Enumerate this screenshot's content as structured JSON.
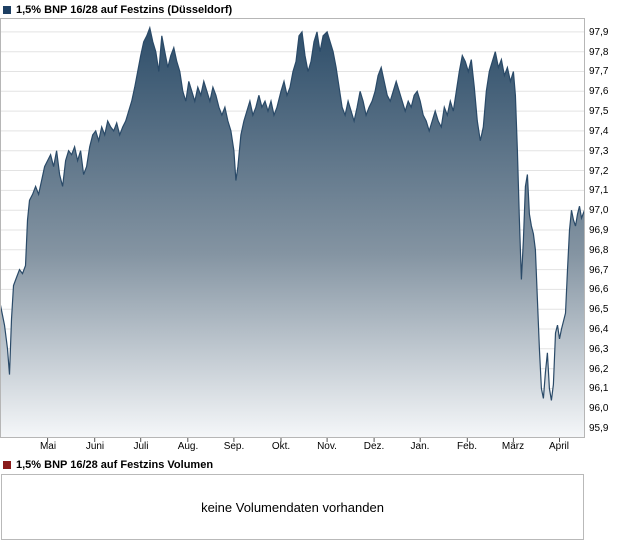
{
  "price_legend": {
    "label": "1,5% BNP 16/28 auf Festzins (Düsseldorf)",
    "color": "#1e3f63"
  },
  "volume_legend": {
    "label": "1,5% BNP 16/28 auf Festzins Volumen",
    "color": "#8a1a1a"
  },
  "volume_panel": {
    "message": "keine Volumendaten vorhanden"
  },
  "chart_data": {
    "type": "area",
    "title": "1,5% BNP 16/28 auf Festzins (Düsseldorf)",
    "xlabel": "",
    "ylabel": "",
    "x_axis_note": "one year, mid-April through April",
    "xlim": [
      0,
      583
    ],
    "ylim": [
      95.85,
      97.97
    ],
    "grid": "horizontal",
    "legend_position": "top-left",
    "line_color": "#2a4a68",
    "fill_top": "#2e4e6a",
    "fill_mid": "#8494a2",
    "fill_bottom": "#f5f7f9",
    "yticks": [
      {
        "value": 97.9,
        "label": "97,9"
      },
      {
        "value": 97.8,
        "label": "97,8"
      },
      {
        "value": 97.7,
        "label": "97,7"
      },
      {
        "value": 97.6,
        "label": "97,6"
      },
      {
        "value": 97.5,
        "label": "97,5"
      },
      {
        "value": 97.4,
        "label": "97,4"
      },
      {
        "value": 97.3,
        "label": "97,3"
      },
      {
        "value": 97.2,
        "label": "97,2"
      },
      {
        "value": 97.1,
        "label": "97,1"
      },
      {
        "value": 97.0,
        "label": "97,0"
      },
      {
        "value": 96.9,
        "label": "96,9"
      },
      {
        "value": 96.8,
        "label": "96,8"
      },
      {
        "value": 96.7,
        "label": "96,7"
      },
      {
        "value": 96.6,
        "label": "96,6"
      },
      {
        "value": 96.5,
        "label": "96,5"
      },
      {
        "value": 96.4,
        "label": "96,4"
      },
      {
        "value": 96.3,
        "label": "96,3"
      },
      {
        "value": 96.2,
        "label": "96,2"
      },
      {
        "value": 96.1,
        "label": "96,1"
      },
      {
        "value": 96.0,
        "label": "96,0"
      },
      {
        "value": 95.9,
        "label": "95,9"
      }
    ],
    "xticks": [
      {
        "label": "Mai",
        "x": 47
      },
      {
        "label": "Juni",
        "x": 94
      },
      {
        "label": "Juli",
        "x": 140
      },
      {
        "label": "Aug.",
        "x": 187
      },
      {
        "label": "Sep.",
        "x": 233
      },
      {
        "label": "Okt.",
        "x": 280
      },
      {
        "label": "Nov.",
        "x": 326
      },
      {
        "label": "Dez.",
        "x": 373
      },
      {
        "label": "Jan.",
        "x": 419
      },
      {
        "label": "Feb.",
        "x": 466
      },
      {
        "label": "März",
        "x": 512
      },
      {
        "label": "April",
        "x": 558
      }
    ],
    "series": [
      {
        "name": "1,5% BNP 16/28 auf Festzins (Düsseldorf)",
        "points": [
          [
            0,
            96.52
          ],
          [
            4,
            96.42
          ],
          [
            7,
            96.3
          ],
          [
            9,
            96.17
          ],
          [
            11,
            96.45
          ],
          [
            13,
            96.62
          ],
          [
            16,
            96.66
          ],
          [
            19,
            96.7
          ],
          [
            22,
            96.68
          ],
          [
            25,
            96.72
          ],
          [
            27,
            96.95
          ],
          [
            29,
            97.05
          ],
          [
            32,
            97.08
          ],
          [
            35,
            97.12
          ],
          [
            38,
            97.08
          ],
          [
            41,
            97.15
          ],
          [
            44,
            97.22
          ],
          [
            47,
            97.25
          ],
          [
            50,
            97.28
          ],
          [
            53,
            97.22
          ],
          [
            56,
            97.3
          ],
          [
            59,
            97.18
          ],
          [
            62,
            97.12
          ],
          [
            65,
            97.25
          ],
          [
            68,
            97.3
          ],
          [
            71,
            97.28
          ],
          [
            74,
            97.32
          ],
          [
            77,
            97.25
          ],
          [
            80,
            97.3
          ],
          [
            83,
            97.18
          ],
          [
            86,
            97.22
          ],
          [
            89,
            97.32
          ],
          [
            92,
            97.38
          ],
          [
            95,
            97.4
          ],
          [
            98,
            97.35
          ],
          [
            101,
            97.42
          ],
          [
            104,
            97.38
          ],
          [
            107,
            97.45
          ],
          [
            110,
            97.42
          ],
          [
            113,
            97.4
          ],
          [
            116,
            97.44
          ],
          [
            119,
            97.38
          ],
          [
            122,
            97.42
          ],
          [
            125,
            97.45
          ],
          [
            128,
            97.5
          ],
          [
            131,
            97.55
          ],
          [
            134,
            97.62
          ],
          [
            137,
            97.7
          ],
          [
            140,
            97.78
          ],
          [
            143,
            97.85
          ],
          [
            146,
            97.88
          ],
          [
            149,
            97.92
          ],
          [
            152,
            97.85
          ],
          [
            155,
            97.8
          ],
          [
            158,
            97.7
          ],
          [
            161,
            97.88
          ],
          [
            164,
            97.8
          ],
          [
            167,
            97.72
          ],
          [
            170,
            97.78
          ],
          [
            173,
            97.82
          ],
          [
            176,
            97.75
          ],
          [
            179,
            97.7
          ],
          [
            182,
            97.6
          ],
          [
            185,
            97.55
          ],
          [
            188,
            97.65
          ],
          [
            191,
            97.6
          ],
          [
            194,
            97.55
          ],
          [
            197,
            97.62
          ],
          [
            200,
            97.58
          ],
          [
            203,
            97.65
          ],
          [
            206,
            97.6
          ],
          [
            209,
            97.55
          ],
          [
            212,
            97.62
          ],
          [
            215,
            97.58
          ],
          [
            218,
            97.52
          ],
          [
            221,
            97.48
          ],
          [
            224,
            97.52
          ],
          [
            227,
            97.45
          ],
          [
            230,
            97.4
          ],
          [
            233,
            97.3
          ],
          [
            235,
            97.15
          ],
          [
            237,
            97.22
          ],
          [
            240,
            97.38
          ],
          [
            243,
            97.45
          ],
          [
            246,
            97.5
          ],
          [
            249,
            97.55
          ],
          [
            252,
            97.48
          ],
          [
            255,
            97.52
          ],
          [
            258,
            97.58
          ],
          [
            261,
            97.52
          ],
          [
            264,
            97.55
          ],
          [
            267,
            97.5
          ],
          [
            270,
            97.55
          ],
          [
            273,
            97.48
          ],
          [
            276,
            97.52
          ],
          [
            280,
            97.6
          ],
          [
            283,
            97.65
          ],
          [
            286,
            97.58
          ],
          [
            289,
            97.62
          ],
          [
            292,
            97.7
          ],
          [
            295,
            97.75
          ],
          [
            298,
            97.88
          ],
          [
            301,
            97.9
          ],
          [
            304,
            97.78
          ],
          [
            307,
            97.7
          ],
          [
            310,
            97.75
          ],
          [
            313,
            97.85
          ],
          [
            316,
            97.9
          ],
          [
            319,
            97.8
          ],
          [
            322,
            97.88
          ],
          [
            326,
            97.9
          ],
          [
            329,
            97.85
          ],
          [
            332,
            97.8
          ],
          [
            335,
            97.72
          ],
          [
            338,
            97.62
          ],
          [
            341,
            97.52
          ],
          [
            344,
            97.48
          ],
          [
            347,
            97.55
          ],
          [
            350,
            97.5
          ],
          [
            353,
            97.45
          ],
          [
            356,
            97.52
          ],
          [
            359,
            97.6
          ],
          [
            362,
            97.55
          ],
          [
            365,
            97.48
          ],
          [
            368,
            97.52
          ],
          [
            371,
            97.55
          ],
          [
            374,
            97.6
          ],
          [
            377,
            97.68
          ],
          [
            380,
            97.72
          ],
          [
            383,
            97.65
          ],
          [
            386,
            97.58
          ],
          [
            389,
            97.55
          ],
          [
            392,
            97.6
          ],
          [
            395,
            97.65
          ],
          [
            398,
            97.6
          ],
          [
            401,
            97.55
          ],
          [
            404,
            97.5
          ],
          [
            407,
            97.55
          ],
          [
            410,
            97.52
          ],
          [
            413,
            97.58
          ],
          [
            416,
            97.6
          ],
          [
            419,
            97.55
          ],
          [
            422,
            97.48
          ],
          [
            425,
            97.45
          ],
          [
            428,
            97.4
          ],
          [
            431,
            97.45
          ],
          [
            434,
            97.5
          ],
          [
            437,
            97.45
          ],
          [
            440,
            97.42
          ],
          [
            443,
            97.52
          ],
          [
            446,
            97.48
          ],
          [
            449,
            97.55
          ],
          [
            452,
            97.5
          ],
          [
            455,
            97.6
          ],
          [
            458,
            97.7
          ],
          [
            461,
            97.78
          ],
          [
            464,
            97.75
          ],
          [
            467,
            97.7
          ],
          [
            470,
            97.76
          ],
          [
            473,
            97.62
          ],
          [
            476,
            97.45
          ],
          [
            479,
            97.35
          ],
          [
            482,
            97.42
          ],
          [
            485,
            97.6
          ],
          [
            488,
            97.7
          ],
          [
            491,
            97.75
          ],
          [
            494,
            97.8
          ],
          [
            497,
            97.72
          ],
          [
            500,
            97.76
          ],
          [
            503,
            97.68
          ],
          [
            506,
            97.72
          ],
          [
            509,
            97.65
          ],
          [
            512,
            97.7
          ],
          [
            514,
            97.58
          ],
          [
            516,
            97.3
          ],
          [
            518,
            96.95
          ],
          [
            520,
            96.65
          ],
          [
            522,
            96.85
          ],
          [
            524,
            97.12
          ],
          [
            526,
            97.18
          ],
          [
            528,
            96.98
          ],
          [
            530,
            96.92
          ],
          [
            532,
            96.88
          ],
          [
            534,
            96.8
          ],
          [
            536,
            96.55
          ],
          [
            538,
            96.3
          ],
          [
            540,
            96.1
          ],
          [
            542,
            96.05
          ],
          [
            544,
            96.18
          ],
          [
            546,
            96.28
          ],
          [
            548,
            96.1
          ],
          [
            550,
            96.04
          ],
          [
            552,
            96.12
          ],
          [
            554,
            96.38
          ],
          [
            556,
            96.42
          ],
          [
            558,
            96.35
          ],
          [
            560,
            96.4
          ],
          [
            562,
            96.44
          ],
          [
            564,
            96.48
          ],
          [
            566,
            96.7
          ],
          [
            568,
            96.9
          ],
          [
            570,
            97.0
          ],
          [
            572,
            96.95
          ],
          [
            574,
            96.92
          ],
          [
            576,
            96.98
          ],
          [
            578,
            97.02
          ],
          [
            580,
            96.96
          ],
          [
            583,
            97.0
          ]
        ]
      }
    ]
  }
}
